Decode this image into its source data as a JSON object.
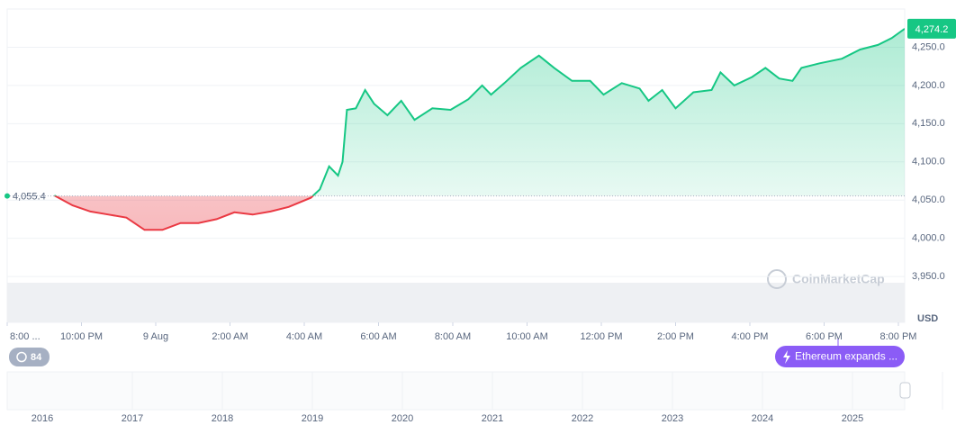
{
  "chart_data": {
    "type": "line",
    "x": [
      21.27,
      21.76,
      22.24,
      22.73,
      23.21,
      23.7,
      24.18,
      24.67,
      25.15,
      25.64,
      26.12,
      26.61,
      27.09,
      27.58,
      28.18,
      28.42,
      28.67,
      28.91,
      29.03,
      29.15,
      29.39,
      29.64,
      29.88,
      30.24,
      30.61,
      30.97,
      31.45,
      31.94,
      32.42,
      32.79,
      33.03,
      33.39,
      33.83,
      34.32,
      34.73,
      35.21,
      35.7,
      36.06,
      36.55,
      37.03,
      37.27,
      37.64,
      38.0,
      38.48,
      38.97,
      39.21,
      39.58,
      40.06,
      40.42,
      40.79,
      41.15,
      41.39,
      41.88,
      42.48,
      42.97,
      43.45,
      43.82,
      44.17
    ],
    "values": [
      4056,
      4043,
      4035,
      4031,
      4027,
      4011,
      4011,
      4020,
      4020,
      4025,
      4034,
      4031,
      4035,
      4041,
      4053,
      4064,
      4094,
      4082,
      4100,
      4168,
      4170,
      4194,
      4176,
      4161,
      4180,
      4155,
      4170,
      4168,
      4182,
      4200,
      4188,
      4203,
      4223,
      4239,
      4223,
      4206,
      4206,
      4188,
      4203,
      4196,
      4180,
      4194,
      4170,
      4191,
      4194,
      4217,
      4200,
      4211,
      4223,
      4209,
      4206,
      4223,
      4229,
      4235,
      4247,
      4253,
      4262,
      4274.2
    ],
    "last_label": "4,274.2",
    "baseline": 4055.4,
    "baseline_label": "4,055.4",
    "color_up": "#16c784",
    "color_down": "#ea3943",
    "xlim": [
      20,
      44.17
    ],
    "xticks": [
      {
        "value": 20,
        "label": "8:00 ..."
      },
      {
        "value": 22,
        "label": "10:00 PM"
      },
      {
        "value": 24,
        "label": "9 Aug"
      },
      {
        "value": 26,
        "label": "2:00 AM"
      },
      {
        "value": 28,
        "label": "4:00 AM"
      },
      {
        "value": 30,
        "label": "6:00 AM"
      },
      {
        "value": 32,
        "label": "8:00 AM"
      },
      {
        "value": 34,
        "label": "10:00 AM"
      },
      {
        "value": 36,
        "label": "12:00 PM"
      },
      {
        "value": 38,
        "label": "2:00 PM"
      },
      {
        "value": 40,
        "label": "4:00 PM"
      },
      {
        "value": 42,
        "label": "6:00 PM"
      },
      {
        "value": 44,
        "label": "8:00 PM"
      }
    ],
    "ylim": [
      3890,
      4300
    ],
    "yticks": [
      {
        "value": 3950,
        "label": "3,950.0"
      },
      {
        "value": 4000,
        "label": "4,000.0"
      },
      {
        "value": 4050,
        "label": "4,050.0"
      },
      {
        "value": 4100,
        "label": "4,100.0"
      },
      {
        "value": 4150,
        "label": "4,150.0"
      },
      {
        "value": 4200,
        "label": "4,200.0"
      },
      {
        "value": 4250,
        "label": "4,250.0"
      }
    ],
    "currency": "USD",
    "grid": true
  },
  "ui": {
    "watermark": "CoinMarketCap",
    "badge_count": 84,
    "event": "Ethereum expands ...",
    "navigator_years": [
      "2016",
      "2017",
      "2018",
      "2019",
      "2020",
      "2021",
      "2022",
      "2023",
      "2024",
      "2025"
    ]
  }
}
